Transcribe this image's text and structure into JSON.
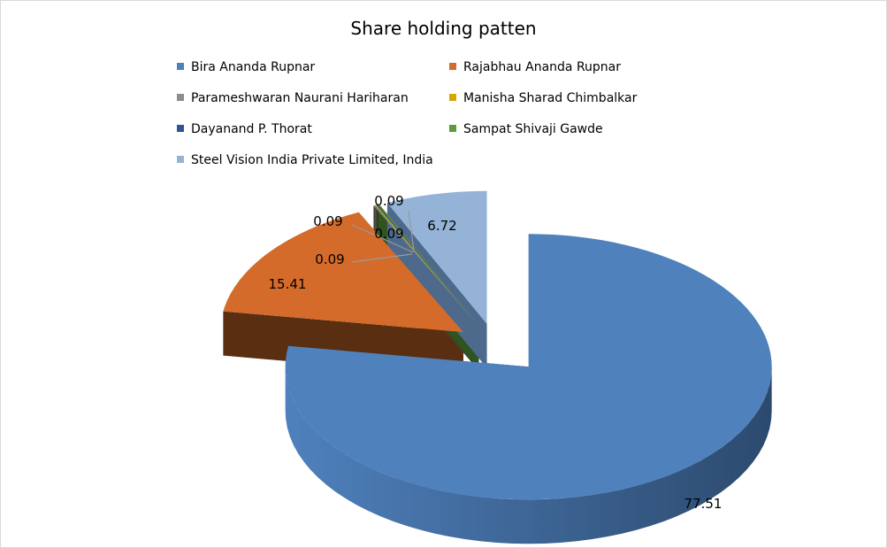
{
  "chart_data": {
    "type": "pie",
    "title": "Share holding patten",
    "legend_position": "top",
    "categories": [
      "Bira Ananda  Rupnar",
      "Rajabhau Ananda  Rupnar",
      "Parameshwaran Naurani Hariharan",
      "Manisha Sharad Chimbalkar",
      "Dayanand P. Thorat",
      "Sampat Shivaji Gawde",
      "Steel Vision India Private Limited, India"
    ],
    "values": [
      77.51,
      15.41,
      0.09,
      0.09,
      0.09,
      0.09,
      6.72
    ],
    "data_labels": [
      "77.51",
      "15.41",
      "0.09",
      "0.09",
      "0.09",
      "0.09",
      "6.72"
    ],
    "colors": [
      "#4f81bd",
      "#d46b2a",
      "#8c8c8c",
      "#d4a800",
      "#2f5597",
      "#5b9b3a",
      "#95b3d7"
    ],
    "side_colors": [
      "#2c4a6e",
      "#5a2e10",
      "#3a3a3a",
      "#6b5400",
      "#1c3358",
      "#2f5420",
      "#4d6a8c"
    ]
  }
}
